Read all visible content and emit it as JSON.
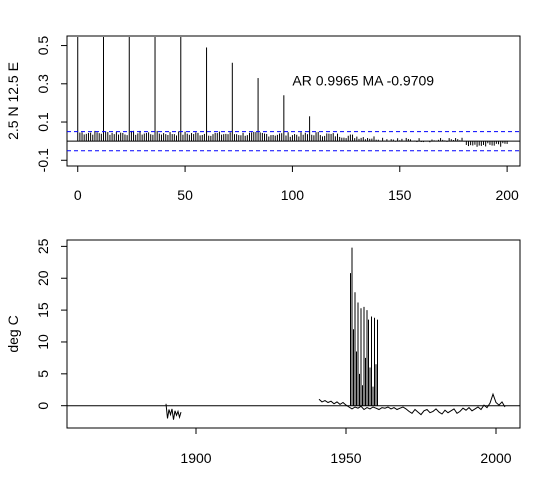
{
  "chart_data": [
    {
      "type": "bar",
      "description": "autocorrelation (ACF) of lag 0 to 200 with significance bounds",
      "ylabel": "2.5 N 12.5 E",
      "xlabel": "",
      "annotation": "AR 0.9965  MA -0.9709",
      "xlim": [
        -5,
        206
      ],
      "ylim": [
        -0.13,
        0.55
      ],
      "xticks": [
        0,
        50,
        100,
        150,
        200
      ],
      "yticks": [
        -0.1,
        0.1,
        0.3,
        0.5
      ],
      "ytick_labels": [
        "-0.1",
        "0.1",
        "0.3",
        "0.5"
      ],
      "significance_bounds": [
        0.05,
        -0.05
      ],
      "seasonal_spikes": {
        "lags": [
          0,
          12,
          24,
          36,
          48,
          60,
          72,
          84,
          96,
          108
        ],
        "values": [
          1.0,
          1.0,
          1.0,
          1.0,
          1.0,
          0.49,
          0.41,
          0.33,
          0.24,
          0.13
        ]
      }
    },
    {
      "type": "line",
      "ylabel": "deg C",
      "xlabel": "",
      "xlim": [
        1857,
        2008
      ],
      "ylim": [
        -3.5,
        26
      ],
      "xticks": [
        1900,
        1950,
        2000
      ],
      "yticks": [
        0,
        5,
        10,
        15,
        20,
        25
      ],
      "segments": [
        {
          "x": [
            1890.0,
            1890.5,
            1891.0,
            1891.5,
            1892.0,
            1892.5,
            1893.0,
            1893.5,
            1894.0,
            1894.5,
            1895.0
          ],
          "y": [
            0.3,
            -2.0,
            -0.6,
            -1.4,
            -0.5,
            -2.2,
            -0.8,
            -1.5,
            -0.9,
            -1.8,
            -1.0
          ]
        },
        {
          "x": [
            1941.0,
            1942.0,
            1943.0,
            1944.0,
            1945.0,
            1946.0,
            1947.0,
            1948.0,
            1949.0,
            1950.0,
            1951.0,
            1952.0,
            1953.0,
            1954.0,
            1955.0,
            1956.0,
            1957.0,
            1958.0,
            1959.0,
            1960.0,
            1961.0,
            1962.0,
            1963.0,
            1964.0,
            1965.0,
            1966.0,
            1967.0,
            1968.0,
            1969.0,
            1970.0,
            1971.0,
            1972.0,
            1973.0,
            1974.0,
            1975.0,
            1976.0,
            1977.0,
            1978.0,
            1979.0,
            1980.0,
            1981.0,
            1982.0,
            1983.0,
            1984.0,
            1985.0,
            1986.0,
            1987.0,
            1988.0,
            1989.0,
            1990.0,
            1991.0,
            1992.0,
            1993.0,
            1994.0,
            1995.0,
            1996.0,
            1997.0,
            1998.0,
            1999.0,
            2000.0,
            2001.0,
            2002.0,
            2003.0
          ],
          "y": [
            1.0,
            0.6,
            0.8,
            0.5,
            0.7,
            0.3,
            0.6,
            0.2,
            0.5,
            0.1,
            -0.2,
            -0.5,
            -0.2,
            -0.4,
            -0.1,
            -0.6,
            -0.3,
            -0.5,
            -0.2,
            -0.4,
            -0.6,
            -0.3,
            -0.4,
            -0.2,
            -0.5,
            -0.3,
            -0.6,
            -0.4,
            -0.2,
            -0.5,
            -0.9,
            -1.2,
            -0.6,
            -1.0,
            -1.4,
            -0.8,
            -0.6,
            -1.1,
            -0.9,
            -0.5,
            -1.0,
            -1.3,
            -0.7,
            -1.1,
            -0.8,
            -0.5,
            -1.2,
            -0.9,
            -0.4,
            -0.7,
            -0.3,
            -0.8,
            -0.5,
            -0.2,
            -0.6,
            0.1,
            -0.3,
            0.4,
            1.8,
            0.5,
            0.1,
            0.6,
            -0.2
          ]
        }
      ],
      "spikes": {
        "x": [
          1951.5,
          1952.0,
          1952.5,
          1953.0,
          1953.5,
          1954.0,
          1954.5,
          1955.0,
          1955.5,
          1956.0,
          1956.5,
          1957.0,
          1957.5,
          1958.0,
          1958.5,
          1959.0,
          1959.5,
          1960.0,
          1960.5
        ],
        "y": [
          20.8,
          24.8,
          12.0,
          17.8,
          8.5,
          16.2,
          5.0,
          15.3,
          3.2,
          15.5,
          7.5,
          15.0,
          13.5,
          6.0,
          14.0,
          3.0,
          13.8,
          6.5,
          13.5
        ]
      },
      "reference_line": 0
    }
  ]
}
